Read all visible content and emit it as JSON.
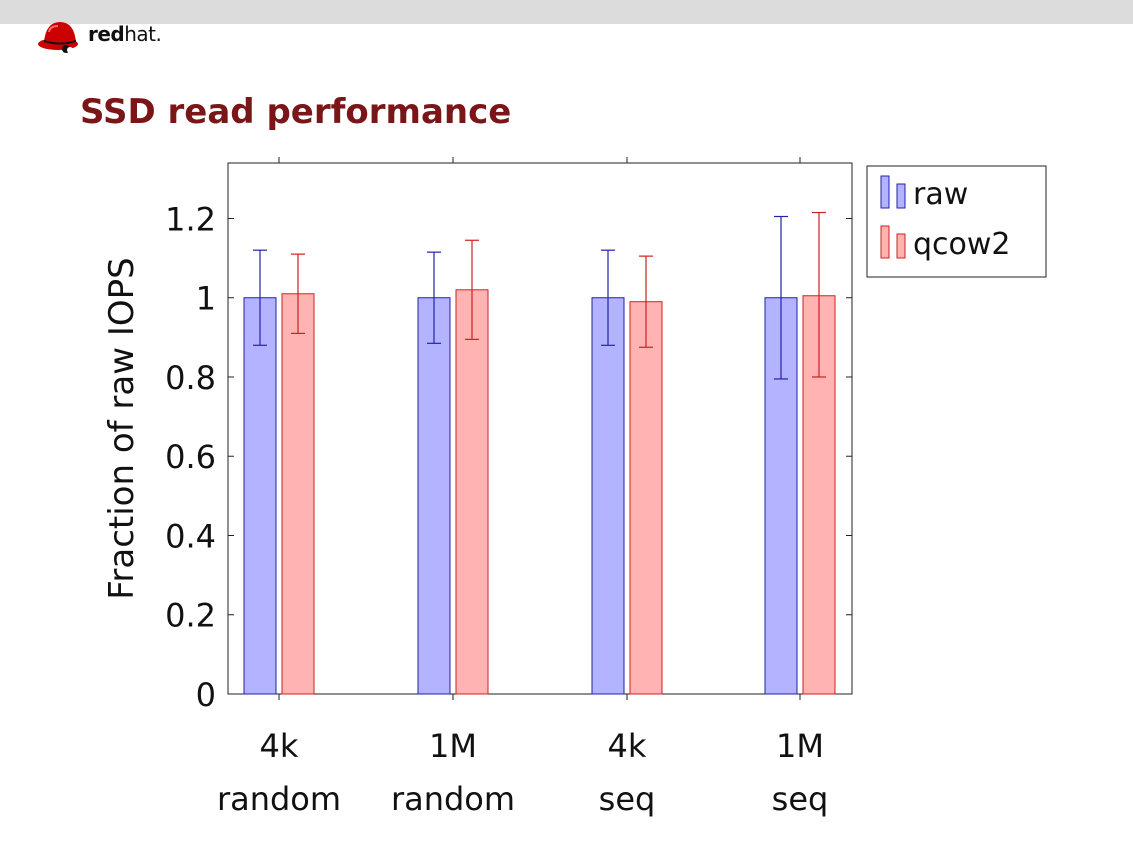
{
  "header": {
    "logo": {
      "icon": "redhat-shadowman-logo",
      "brand_bold": "red",
      "brand_regular": "hat."
    },
    "title": "SSD read performance"
  },
  "colors": {
    "title": "#7a1618",
    "raw_fill": "#b3b3ff",
    "raw_stroke": "#2222aa",
    "qcow2_fill": "#ffb3b3",
    "qcow2_stroke": "#cc2222",
    "top_band": "#dcdcdc"
  },
  "chart_data": {
    "type": "bar",
    "title": "",
    "ylabel": "Fraction of raw IOPS",
    "xlabel": "",
    "ylim": [
      0,
      1.34
    ],
    "yticks": [
      0,
      0.2,
      0.4,
      0.6,
      0.8,
      1,
      1.2
    ],
    "ytick_labels": [
      "0",
      "0.2",
      "0.4",
      "0.6",
      "0.8",
      "1",
      "1.2"
    ],
    "grid": false,
    "legend_position": "top-right, outside plot",
    "categories": [
      [
        "4k",
        "random"
      ],
      [
        "1M",
        "random"
      ],
      [
        "4k",
        "seq"
      ],
      [
        "1M",
        "seq"
      ]
    ],
    "series": [
      {
        "name": "raw",
        "values": [
          1.0,
          1.0,
          1.0,
          1.0
        ],
        "error_low": [
          0.88,
          0.885,
          0.88,
          0.795
        ],
        "error_high": [
          1.12,
          1.115,
          1.12,
          1.205
        ]
      },
      {
        "name": "qcow2",
        "values": [
          1.01,
          1.02,
          0.99,
          1.005
        ],
        "error_low": [
          0.91,
          0.895,
          0.875,
          0.8
        ],
        "error_high": [
          1.11,
          1.145,
          1.105,
          1.215
        ]
      }
    ]
  }
}
